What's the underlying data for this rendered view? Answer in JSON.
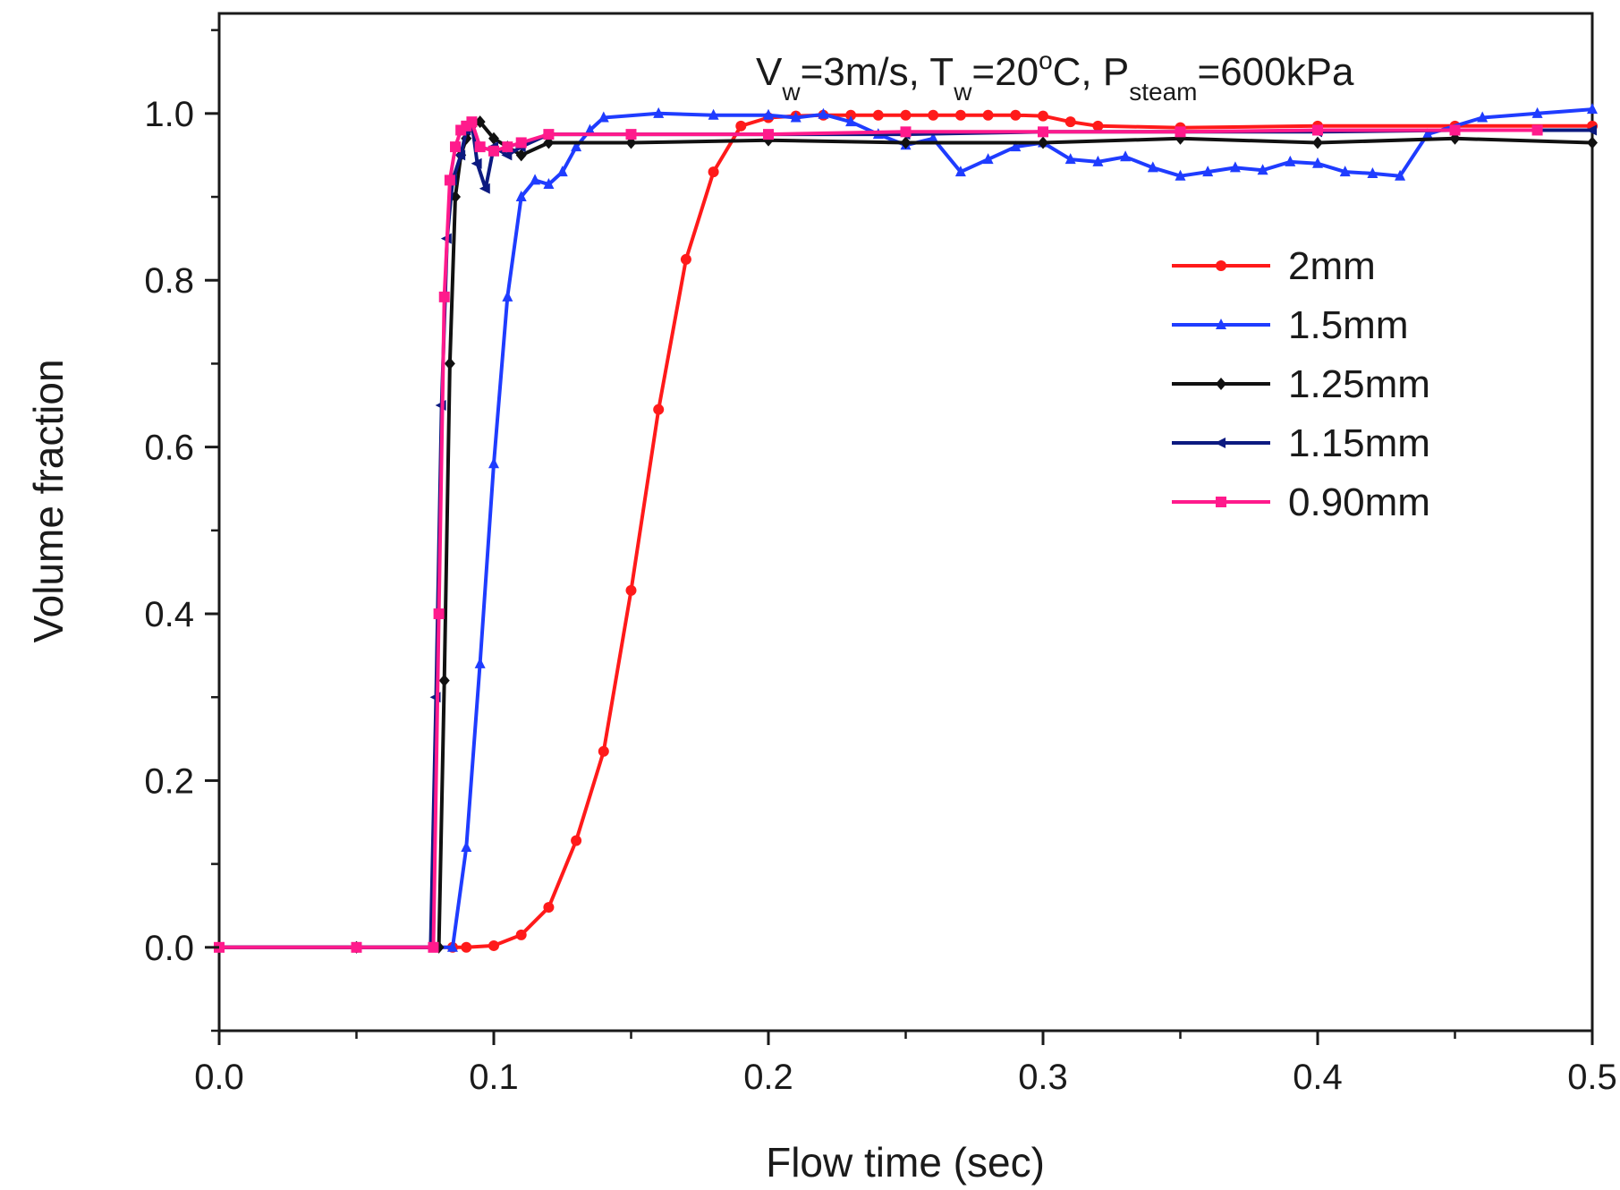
{
  "chart_data": {
    "type": "line",
    "title": "",
    "xlabel": "Flow time (sec)",
    "ylabel": "Volume fraction",
    "xlim": [
      0.0,
      0.5
    ],
    "ylim": [
      -0.1,
      1.12
    ],
    "xticks": [
      "0.0",
      "0.1",
      "0.2",
      "0.3",
      "0.4",
      "0.5"
    ],
    "yticks": [
      "0.0",
      "0.2",
      "0.4",
      "0.6",
      "0.8",
      "1.0"
    ],
    "grid": false,
    "legend_position": "right",
    "annotation": {
      "v": "V",
      "v_sub": "w",
      "v_rest": "=3m/s, ",
      "t": "T",
      "t_sub": "w",
      "t_rest": "=20",
      "t_sup": "o",
      "t_unit": "C, ",
      "p": "P",
      "p_sub": "steam",
      "p_rest": "=600kPa"
    },
    "series": [
      {
        "name": "2mm",
        "color": "#ff1a1a",
        "marker": "circle",
        "x": [
          0.0,
          0.05,
          0.085,
          0.09,
          0.1,
          0.11,
          0.12,
          0.13,
          0.14,
          0.15,
          0.16,
          0.17,
          0.18,
          0.19,
          0.2,
          0.21,
          0.22,
          0.23,
          0.24,
          0.25,
          0.26,
          0.27,
          0.28,
          0.29,
          0.3,
          0.31,
          0.32,
          0.35,
          0.4,
          0.45,
          0.5
        ],
        "y": [
          0.0,
          0.0,
          0.0,
          0.0,
          0.002,
          0.015,
          0.048,
          0.128,
          0.235,
          0.428,
          0.645,
          0.825,
          0.93,
          0.985,
          0.995,
          0.997,
          0.998,
          0.998,
          0.998,
          0.998,
          0.998,
          0.998,
          0.998,
          0.998,
          0.997,
          0.99,
          0.985,
          0.983,
          0.985,
          0.985,
          0.985
        ]
      },
      {
        "name": "1.5mm",
        "color": "#1f3cff",
        "marker": "triangle",
        "x": [
          0.0,
          0.05,
          0.085,
          0.09,
          0.095,
          0.1,
          0.105,
          0.11,
          0.115,
          0.12,
          0.125,
          0.13,
          0.135,
          0.14,
          0.16,
          0.18,
          0.2,
          0.21,
          0.22,
          0.23,
          0.24,
          0.25,
          0.26,
          0.27,
          0.28,
          0.29,
          0.3,
          0.31,
          0.32,
          0.33,
          0.34,
          0.35,
          0.36,
          0.37,
          0.38,
          0.39,
          0.4,
          0.41,
          0.42,
          0.43,
          0.44,
          0.46,
          0.48,
          0.5
        ],
        "y": [
          0.0,
          0.0,
          0.0,
          0.12,
          0.34,
          0.58,
          0.78,
          0.9,
          0.92,
          0.915,
          0.93,
          0.96,
          0.98,
          0.995,
          1.0,
          0.998,
          0.998,
          0.995,
          0.999,
          0.99,
          0.975,
          0.962,
          0.97,
          0.93,
          0.945,
          0.96,
          0.965,
          0.945,
          0.942,
          0.948,
          0.935,
          0.925,
          0.93,
          0.935,
          0.932,
          0.942,
          0.94,
          0.93,
          0.928,
          0.925,
          0.975,
          0.995,
          1.0,
          1.005
        ]
      },
      {
        "name": "1.25mm",
        "color": "#111111",
        "marker": "diamond",
        "x": [
          0.0,
          0.05,
          0.08,
          0.082,
          0.084,
          0.086,
          0.088,
          0.09,
          0.092,
          0.095,
          0.1,
          0.105,
          0.11,
          0.12,
          0.15,
          0.2,
          0.25,
          0.3,
          0.35,
          0.4,
          0.45,
          0.5
        ],
        "y": [
          0.0,
          0.0,
          0.0,
          0.32,
          0.7,
          0.9,
          0.95,
          0.97,
          0.985,
          0.99,
          0.97,
          0.96,
          0.95,
          0.965,
          0.965,
          0.968,
          0.965,
          0.965,
          0.97,
          0.965,
          0.97,
          0.965
        ]
      },
      {
        "name": "1.15mm",
        "color": "#0c1a80",
        "marker": "left-triangle",
        "x": [
          0.0,
          0.05,
          0.077,
          0.079,
          0.081,
          0.083,
          0.085,
          0.088,
          0.09,
          0.092,
          0.094,
          0.097,
          0.1,
          0.105,
          0.11,
          0.12,
          0.15,
          0.2,
          0.25,
          0.3,
          0.35,
          0.4,
          0.45,
          0.5
        ],
        "y": [
          0.0,
          0.0,
          0.0,
          0.3,
          0.65,
          0.85,
          0.92,
          0.95,
          0.98,
          0.99,
          0.94,
          0.91,
          0.96,
          0.95,
          0.96,
          0.975,
          0.975,
          0.975,
          0.975,
          0.978,
          0.978,
          0.978,
          0.98,
          0.98
        ]
      },
      {
        "name": "0.90mm",
        "color": "#ff1a8c",
        "marker": "square",
        "x": [
          0.0,
          0.05,
          0.078,
          0.08,
          0.082,
          0.084,
          0.086,
          0.088,
          0.09,
          0.092,
          0.095,
          0.1,
          0.105,
          0.11,
          0.12,
          0.15,
          0.2,
          0.25,
          0.3,
          0.35,
          0.4,
          0.45,
          0.48
        ],
        "y": [
          0.0,
          0.0,
          0.0,
          0.4,
          0.78,
          0.92,
          0.96,
          0.98,
          0.985,
          0.99,
          0.96,
          0.955,
          0.96,
          0.965,
          0.975,
          0.975,
          0.975,
          0.978,
          0.978,
          0.978,
          0.98,
          0.98,
          0.98
        ]
      }
    ]
  }
}
